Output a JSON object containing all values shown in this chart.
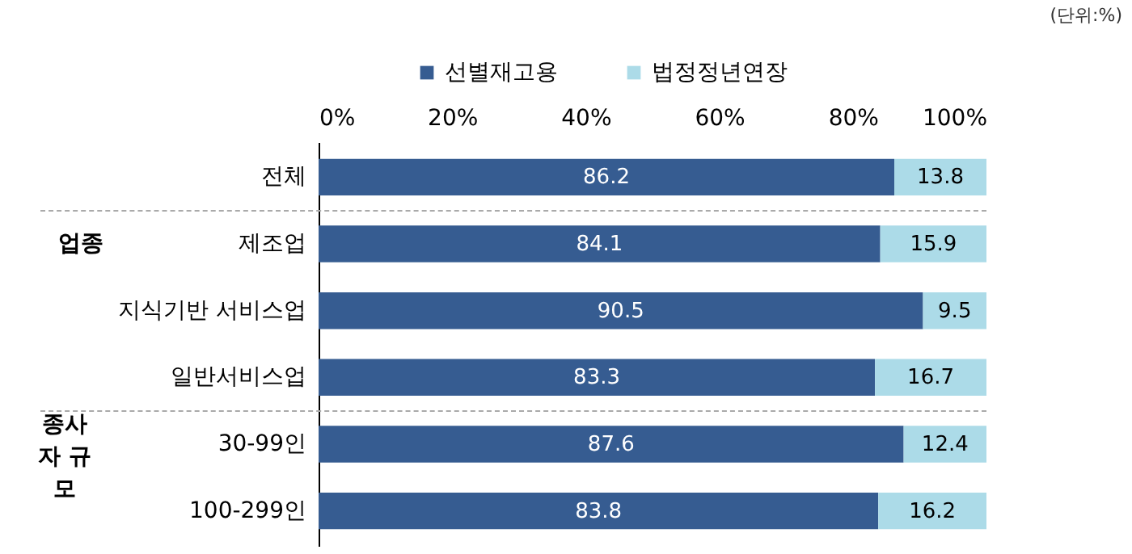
{
  "chart_data": {
    "type": "bar",
    "orientation": "horizontal",
    "stacked": true,
    "data_labels": true,
    "legend": "top",
    "grid": false,
    "categories": [
      "전체",
      "제조업",
      "지식기반 서비스업",
      "일반서비스업",
      "30-99인",
      "100-299인"
    ],
    "series": [
      {
        "name": "선별재고용",
        "color": "#365c91",
        "values": [
          86.2,
          84.1,
          90.5,
          83.3,
          87.6,
          83.8
        ]
      },
      {
        "name": "법정정년연장",
        "color": "#acdbe8",
        "values": [
          13.8,
          15.9,
          9.5,
          16.7,
          12.4,
          16.2
        ]
      }
    ],
    "xlim": [
      0,
      100
    ],
    "xticks": [
      {
        "value": 0,
        "label": "0%"
      },
      {
        "value": 20,
        "label": "20%"
      },
      {
        "value": 40,
        "label": "40%"
      },
      {
        "value": 60,
        "label": "60%"
      },
      {
        "value": 80,
        "label": "80%"
      },
      {
        "value": 100,
        "label": "100%"
      }
    ],
    "annotations": [
      "(단위:%)",
      "업종",
      "종사자 규모"
    ]
  }
}
